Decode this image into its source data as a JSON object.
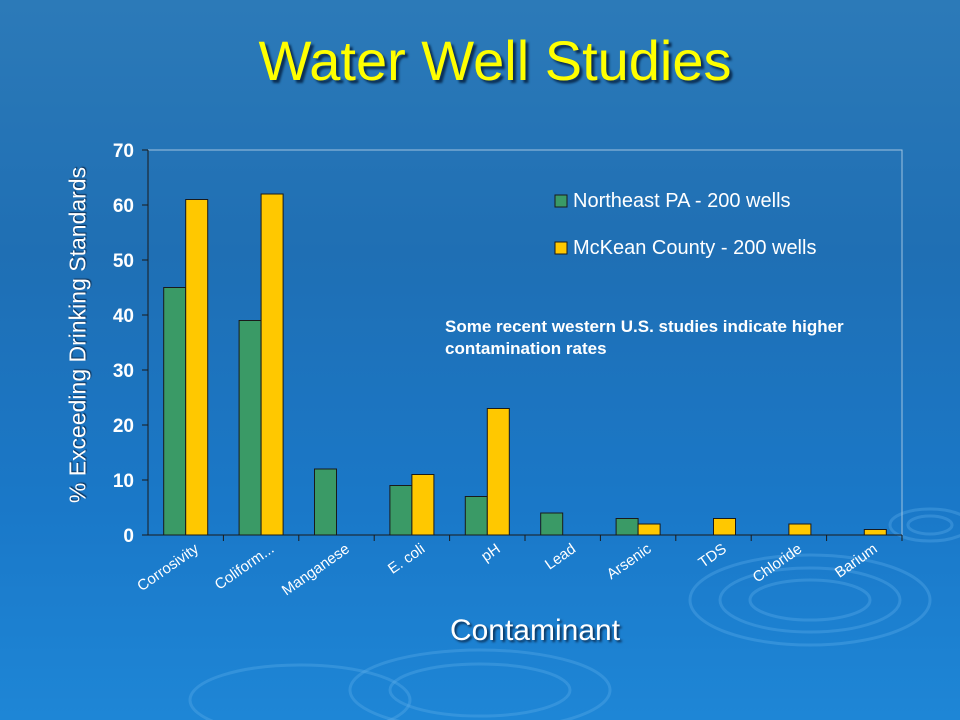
{
  "slide": {
    "title": "Water Well Studies",
    "note": "Some recent western U.S. studies indicate higher contamination rates"
  },
  "colors": {
    "series1": "#3a9a66",
    "series2": "#ffc800",
    "title": "#ffff00",
    "text": "#ffffff"
  },
  "chart_data": {
    "type": "bar",
    "categories": [
      "Corrosivity",
      "Coliform...",
      "Manganese",
      "E. coli",
      "pH",
      "Lead",
      "Arsenic",
      "TDS",
      "Chloride",
      "Barium"
    ],
    "series": [
      {
        "name": "Northeast PA - 200 wells",
        "values": [
          45,
          39,
          12,
          9,
          7,
          4,
          3,
          0,
          0,
          0
        ]
      },
      {
        "name": "McKean County - 200 wells",
        "values": [
          61,
          62,
          0,
          11,
          23,
          0,
          2,
          3,
          2,
          1
        ]
      }
    ],
    "xlabel": "Contaminant",
    "ylabel": "% Exceeding Drinking Standards",
    "ylim": [
      0,
      70
    ],
    "yticks": [
      0,
      10,
      20,
      30,
      40,
      50,
      60,
      70
    ],
    "grid": false,
    "legend_position": "top-right"
  }
}
